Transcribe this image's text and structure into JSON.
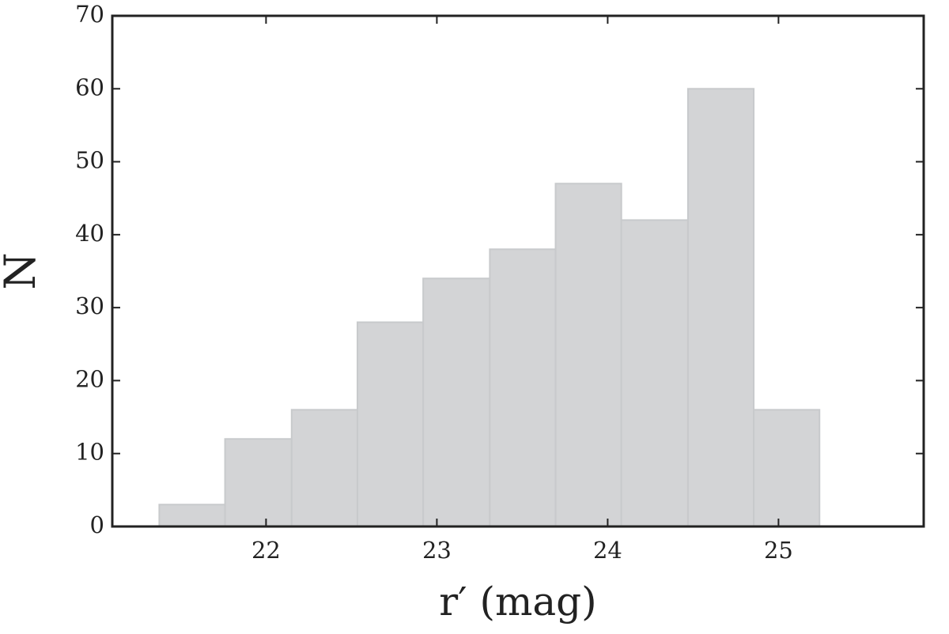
{
  "chart_data": {
    "type": "histogram",
    "x_label": "r′ (mag)",
    "y_label": "N",
    "bins": [
      21.375,
      21.76,
      22.15,
      22.535,
      22.92,
      23.31,
      23.695,
      24.08,
      24.47,
      24.855,
      25.24
    ],
    "values": [
      3,
      12,
      16,
      28,
      34,
      38,
      47,
      42,
      60,
      16
    ],
    "color": "#d3d4d6",
    "xlim": [
      21.1,
      25.85
    ],
    "ylim": [
      0,
      70
    ],
    "xticks": [
      22,
      23,
      24,
      25
    ],
    "yticks": [
      0,
      10,
      20,
      30,
      40,
      50,
      60,
      70
    ]
  }
}
